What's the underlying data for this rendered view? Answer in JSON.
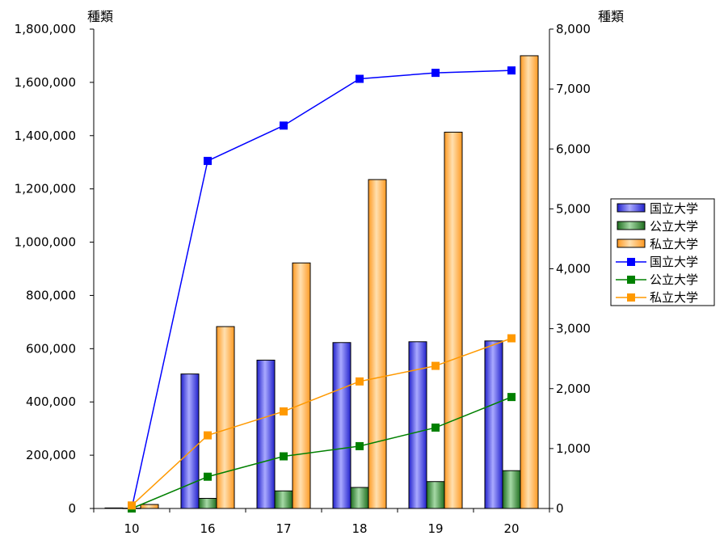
{
  "chart_data": {
    "type": "bar",
    "title": "",
    "xlabel": "",
    "y_left_unit": "種類",
    "y_right_unit": "種類",
    "categories": [
      "10",
      "16",
      "17",
      "18",
      "19",
      "20"
    ],
    "ylim_left": [
      0,
      1800000
    ],
    "ylim_right": [
      0,
      8000
    ],
    "yticks_left": [
      "0",
      "200,000",
      "400,000",
      "600,000",
      "800,000",
      "1,000,000",
      "1,200,000",
      "1,400,000",
      "1,600,000",
      "1,800,000"
    ],
    "yticks_right": [
      "0",
      "1,000",
      "2,000",
      "3,000",
      "4,000",
      "5,000",
      "6,000",
      "7,000",
      "8,000"
    ],
    "bar_series": [
      {
        "name": "国立大学",
        "color": "#3333ff",
        "values": [
          2000,
          505000,
          557000,
          623000,
          626000,
          629000
        ]
      },
      {
        "name": "公立大学",
        "color": "#339933",
        "values": [
          1000,
          38000,
          66000,
          79000,
          101000,
          142000
        ]
      },
      {
        "name": "私立大学",
        "color": "#ff9933",
        "values": [
          15000,
          683000,
          922000,
          1235000,
          1413000,
          1700000
        ]
      }
    ],
    "line_series": [
      {
        "name": "国立大学",
        "color": "#0000ff",
        "values": [
          0,
          5800,
          6390,
          7170,
          7270,
          7310
        ]
      },
      {
        "name": "公立大学",
        "color": "#008000",
        "values": [
          0,
          530,
          870,
          1040,
          1350,
          1860
        ]
      },
      {
        "name": "私立大学",
        "color": "#ff9900",
        "values": [
          50,
          1220,
          1620,
          2120,
          2380,
          2840
        ]
      }
    ],
    "grid": false,
    "legend_position": "right"
  }
}
